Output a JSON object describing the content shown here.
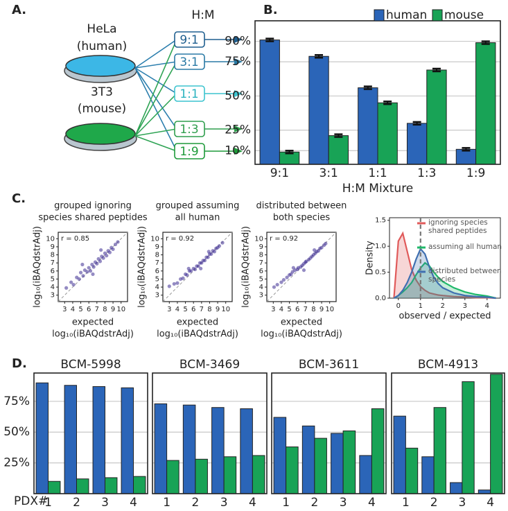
{
  "panel_labels": [
    "A.",
    "B.",
    "C.",
    "D."
  ],
  "diagram": {
    "dishes": [
      {
        "label": "HeLa",
        "sublabel": "(human)"
      },
      {
        "label": "3T3",
        "sublabel": "(mouse)"
      }
    ],
    "header": "H:M",
    "mixtures": [
      "9:1",
      "3:1",
      "1:1",
      "1:3",
      "1:9"
    ]
  },
  "pdx_label": "PDX#",
  "chart_data": [
    {
      "type": "bar",
      "categories": [
        "9:1",
        "3:1",
        "1:1",
        "1:3",
        "1:9"
      ],
      "xlabel": "H:M Mixture",
      "series": [
        {
          "name": "human",
          "color": "#2b65b8",
          "values": [
            91,
            79,
            56,
            30,
            11
          ],
          "errors": [
            1,
            1,
            1,
            1,
            1
          ]
        },
        {
          "name": "mouse",
          "color": "#18a356",
          "values": [
            9,
            21,
            45,
            69,
            89
          ],
          "errors": [
            1,
            1,
            1,
            1,
            1
          ]
        }
      ],
      "ylim": [
        0,
        105
      ],
      "yticks": [
        {
          "value": 10,
          "label": "10%"
        },
        {
          "value": 25,
          "label": "25%"
        },
        {
          "value": 50,
          "label": "50%"
        },
        {
          "value": 75,
          "label": "75%"
        },
        {
          "value": 90,
          "label": "90%"
        }
      ],
      "grid": true,
      "legend": "top-right"
    },
    {
      "type": "scatter",
      "title": [
        "grouped ignoring",
        "species shared peptides"
      ],
      "annotation": "r = 0.85",
      "ylabel": "log₁₀(iBAQdstrAdj)",
      "xlabel": [
        "expected",
        "log₁₀(iBAQdstrAdj)"
      ],
      "color": "#3d2b91",
      "x": [
        3.2,
        3.8,
        4.1,
        4.5,
        4.8,
        5.0,
        5.3,
        5.5,
        5.8,
        6.0,
        6.2,
        6.4,
        6.6,
        6.8,
        7.0,
        7.2,
        7.4,
        7.6,
        7.8,
        8.0,
        8.2,
        8.4,
        8.6,
        8.8,
        9.0,
        9.3,
        9.6,
        5.2,
        6.5,
        7.5
      ],
      "y": [
        3.9,
        4.6,
        4.3,
        5.2,
        5.0,
        5.8,
        5.4,
        6.1,
        5.9,
        6.4,
        6.0,
        6.8,
        6.5,
        7.1,
        6.9,
        7.5,
        7.2,
        7.8,
        7.6,
        8.2,
        7.9,
        8.5,
        8.3,
        8.9,
        8.7,
        9.3,
        9.6,
        6.8,
        5.6,
        8.6
      ],
      "xlim": [
        2.2,
        10.8
      ],
      "ylim": [
        2.2,
        10.8
      ],
      "xticks": [
        3,
        4,
        5,
        6,
        7,
        8,
        9,
        10
      ],
      "yticks": [
        3,
        4,
        5,
        6,
        7,
        8,
        9,
        10
      ]
    },
    {
      "type": "scatter",
      "title": [
        "grouped assuming",
        "all human"
      ],
      "annotation": "r = 0.92",
      "ylabel": "log₁₀(iBAQdstrAdj)",
      "xlabel": [
        "expected",
        "log₁₀(iBAQdstrAdj)"
      ],
      "color": "#3d2b91",
      "x": [
        3.0,
        3.6,
        4.0,
        4.4,
        4.7,
        5.0,
        5.2,
        5.5,
        5.7,
        6.0,
        6.2,
        6.4,
        6.6,
        6.8,
        7.0,
        7.2,
        7.4,
        7.6,
        7.8,
        8.0,
        8.2,
        8.4,
        8.6,
        8.8,
        9.0,
        9.2,
        9.6,
        5.4,
        6.9,
        7.9
      ],
      "y": [
        4.1,
        4.4,
        4.5,
        5.0,
        5.1,
        5.6,
        5.5,
        6.0,
        6.0,
        6.3,
        6.2,
        6.6,
        6.6,
        7.0,
        7.0,
        7.3,
        7.3,
        7.7,
        7.7,
        8.1,
        8.1,
        8.5,
        8.4,
        8.8,
        8.9,
        9.1,
        9.5,
        6.3,
        6.3,
        8.4
      ],
      "xlim": [
        2.2,
        10.8
      ],
      "ylim": [
        2.2,
        10.8
      ],
      "xticks": [
        3,
        4,
        5,
        6,
        7,
        8,
        9,
        10
      ],
      "yticks": [
        3,
        4,
        5,
        6,
        7,
        8,
        9,
        10
      ]
    },
    {
      "type": "scatter",
      "title": [
        "distributed between",
        "both species"
      ],
      "annotation": "r = 0.92",
      "ylabel": "log₁₀(iBAQdstrAdj)",
      "xlabel": [
        "expected",
        "log₁₀(iBAQdstrAdj)"
      ],
      "color": "#3d2b91",
      "x": [
        3.1,
        3.5,
        4.0,
        4.3,
        4.7,
        5.0,
        5.2,
        5.4,
        5.7,
        6.0,
        6.1,
        6.4,
        6.6,
        6.8,
        7.0,
        7.1,
        7.4,
        7.6,
        7.8,
        8.0,
        8.2,
        8.4,
        8.6,
        8.8,
        9.0,
        9.3,
        9.5,
        5.5,
        6.8,
        8.1
      ],
      "y": [
        4.0,
        4.3,
        4.6,
        4.9,
        5.2,
        5.5,
        5.6,
        5.9,
        6.1,
        6.2,
        6.4,
        6.5,
        6.7,
        6.9,
        7.1,
        7.2,
        7.4,
        7.6,
        7.8,
        8.0,
        8.2,
        8.4,
        8.5,
        8.8,
        8.9,
        9.2,
        9.4,
        6.4,
        6.1,
        8.6
      ],
      "xlim": [
        2.2,
        10.8
      ],
      "ylim": [
        2.2,
        10.8
      ],
      "xticks": [
        3,
        4,
        5,
        6,
        7,
        8,
        9,
        10
      ],
      "yticks": [
        3,
        4,
        5,
        6,
        7,
        8,
        9,
        10
      ]
    },
    {
      "type": "line",
      "ylabel": "Density",
      "xlabel": "observed / expected",
      "x": [
        -0.2,
        0,
        0.2,
        0.4,
        0.6,
        0.8,
        1,
        1.2,
        1.4,
        1.6,
        1.8,
        2,
        2.5,
        3,
        3.5,
        4,
        4.4
      ],
      "series": [
        {
          "name": "ignoring species shared peptides",
          "color": "#e05a5a",
          "values": [
            0,
            1.1,
            1.25,
            0.9,
            0.55,
            0.35,
            0.22,
            0.15,
            0.1,
            0.08,
            0.06,
            0.05,
            0.03,
            0.02,
            0.01,
            0.01,
            0
          ]
        },
        {
          "name": "assuming all human",
          "color": "#1fb86a",
          "values": [
            0,
            0.05,
            0.12,
            0.2,
            0.3,
            0.45,
            0.58,
            0.68,
            0.62,
            0.5,
            0.4,
            0.32,
            0.2,
            0.12,
            0.07,
            0.04,
            0
          ]
        },
        {
          "name": "distributed between species",
          "color": "#3f6fb0",
          "values": [
            0,
            0.05,
            0.15,
            0.3,
            0.5,
            0.75,
            0.95,
            0.85,
            0.6,
            0.4,
            0.28,
            0.2,
            0.1,
            0.05,
            0.03,
            0.02,
            0
          ]
        }
      ],
      "reference_line": 1,
      "xlim": [
        -0.4,
        4.6
      ],
      "ylim": [
        0,
        1.55
      ],
      "xticks": [
        0,
        1,
        2,
        3,
        4
      ],
      "yticks": [
        {
          "value": 0,
          "label": "0.0"
        },
        {
          "value": 0.5,
          "label": "0.5"
        },
        {
          "value": 1,
          "label": "1.0"
        },
        {
          "value": 1.5,
          "label": "1.5"
        }
      ],
      "legend": "right"
    },
    {
      "type": "bar",
      "title": "BCM-5998",
      "categories": [
        "1",
        "2",
        "3",
        "4"
      ],
      "series": [
        {
          "name": "human",
          "color": "#2b65b8",
          "values": [
            90,
            88,
            87,
            86
          ]
        },
        {
          "name": "mouse",
          "color": "#18a356",
          "values": [
            10,
            12,
            13,
            14
          ]
        }
      ],
      "ylim": [
        0,
        98
      ],
      "yticks": [
        {
          "value": 25,
          "label": "25%"
        },
        {
          "value": 50,
          "label": "50%"
        },
        {
          "value": 75,
          "label": "75%"
        }
      ],
      "grid": true
    },
    {
      "type": "bar",
      "title": "BCM-3469",
      "categories": [
        "1",
        "2",
        "3",
        "4"
      ],
      "series": [
        {
          "name": "human",
          "color": "#2b65b8",
          "values": [
            73,
            72,
            70,
            69
          ]
        },
        {
          "name": "mouse",
          "color": "#18a356",
          "values": [
            27,
            28,
            30,
            31
          ]
        }
      ],
      "ylim": [
        0,
        98
      ],
      "gridlines": [
        25,
        50,
        75
      ]
    },
    {
      "type": "bar",
      "title": "BCM-3611",
      "categories": [
        "1",
        "2",
        "3",
        "4"
      ],
      "series": [
        {
          "name": "human",
          "color": "#2b65b8",
          "values": [
            62,
            55,
            49,
            31
          ]
        },
        {
          "name": "mouse",
          "color": "#18a356",
          "values": [
            38,
            45,
            51,
            69
          ]
        }
      ],
      "ylim": [
        0,
        98
      ],
      "gridlines": [
        25,
        50,
        75
      ]
    },
    {
      "type": "bar",
      "title": "BCM-4913",
      "categories": [
        "1",
        "2",
        "3",
        "4"
      ],
      "series": [
        {
          "name": "human",
          "color": "#2b65b8",
          "values": [
            63,
            30,
            9,
            3
          ]
        },
        {
          "name": "mouse",
          "color": "#18a356",
          "values": [
            37,
            70,
            91,
            97
          ]
        }
      ],
      "ylim": [
        0,
        98
      ],
      "gridlines": [
        25,
        50,
        75
      ]
    }
  ]
}
